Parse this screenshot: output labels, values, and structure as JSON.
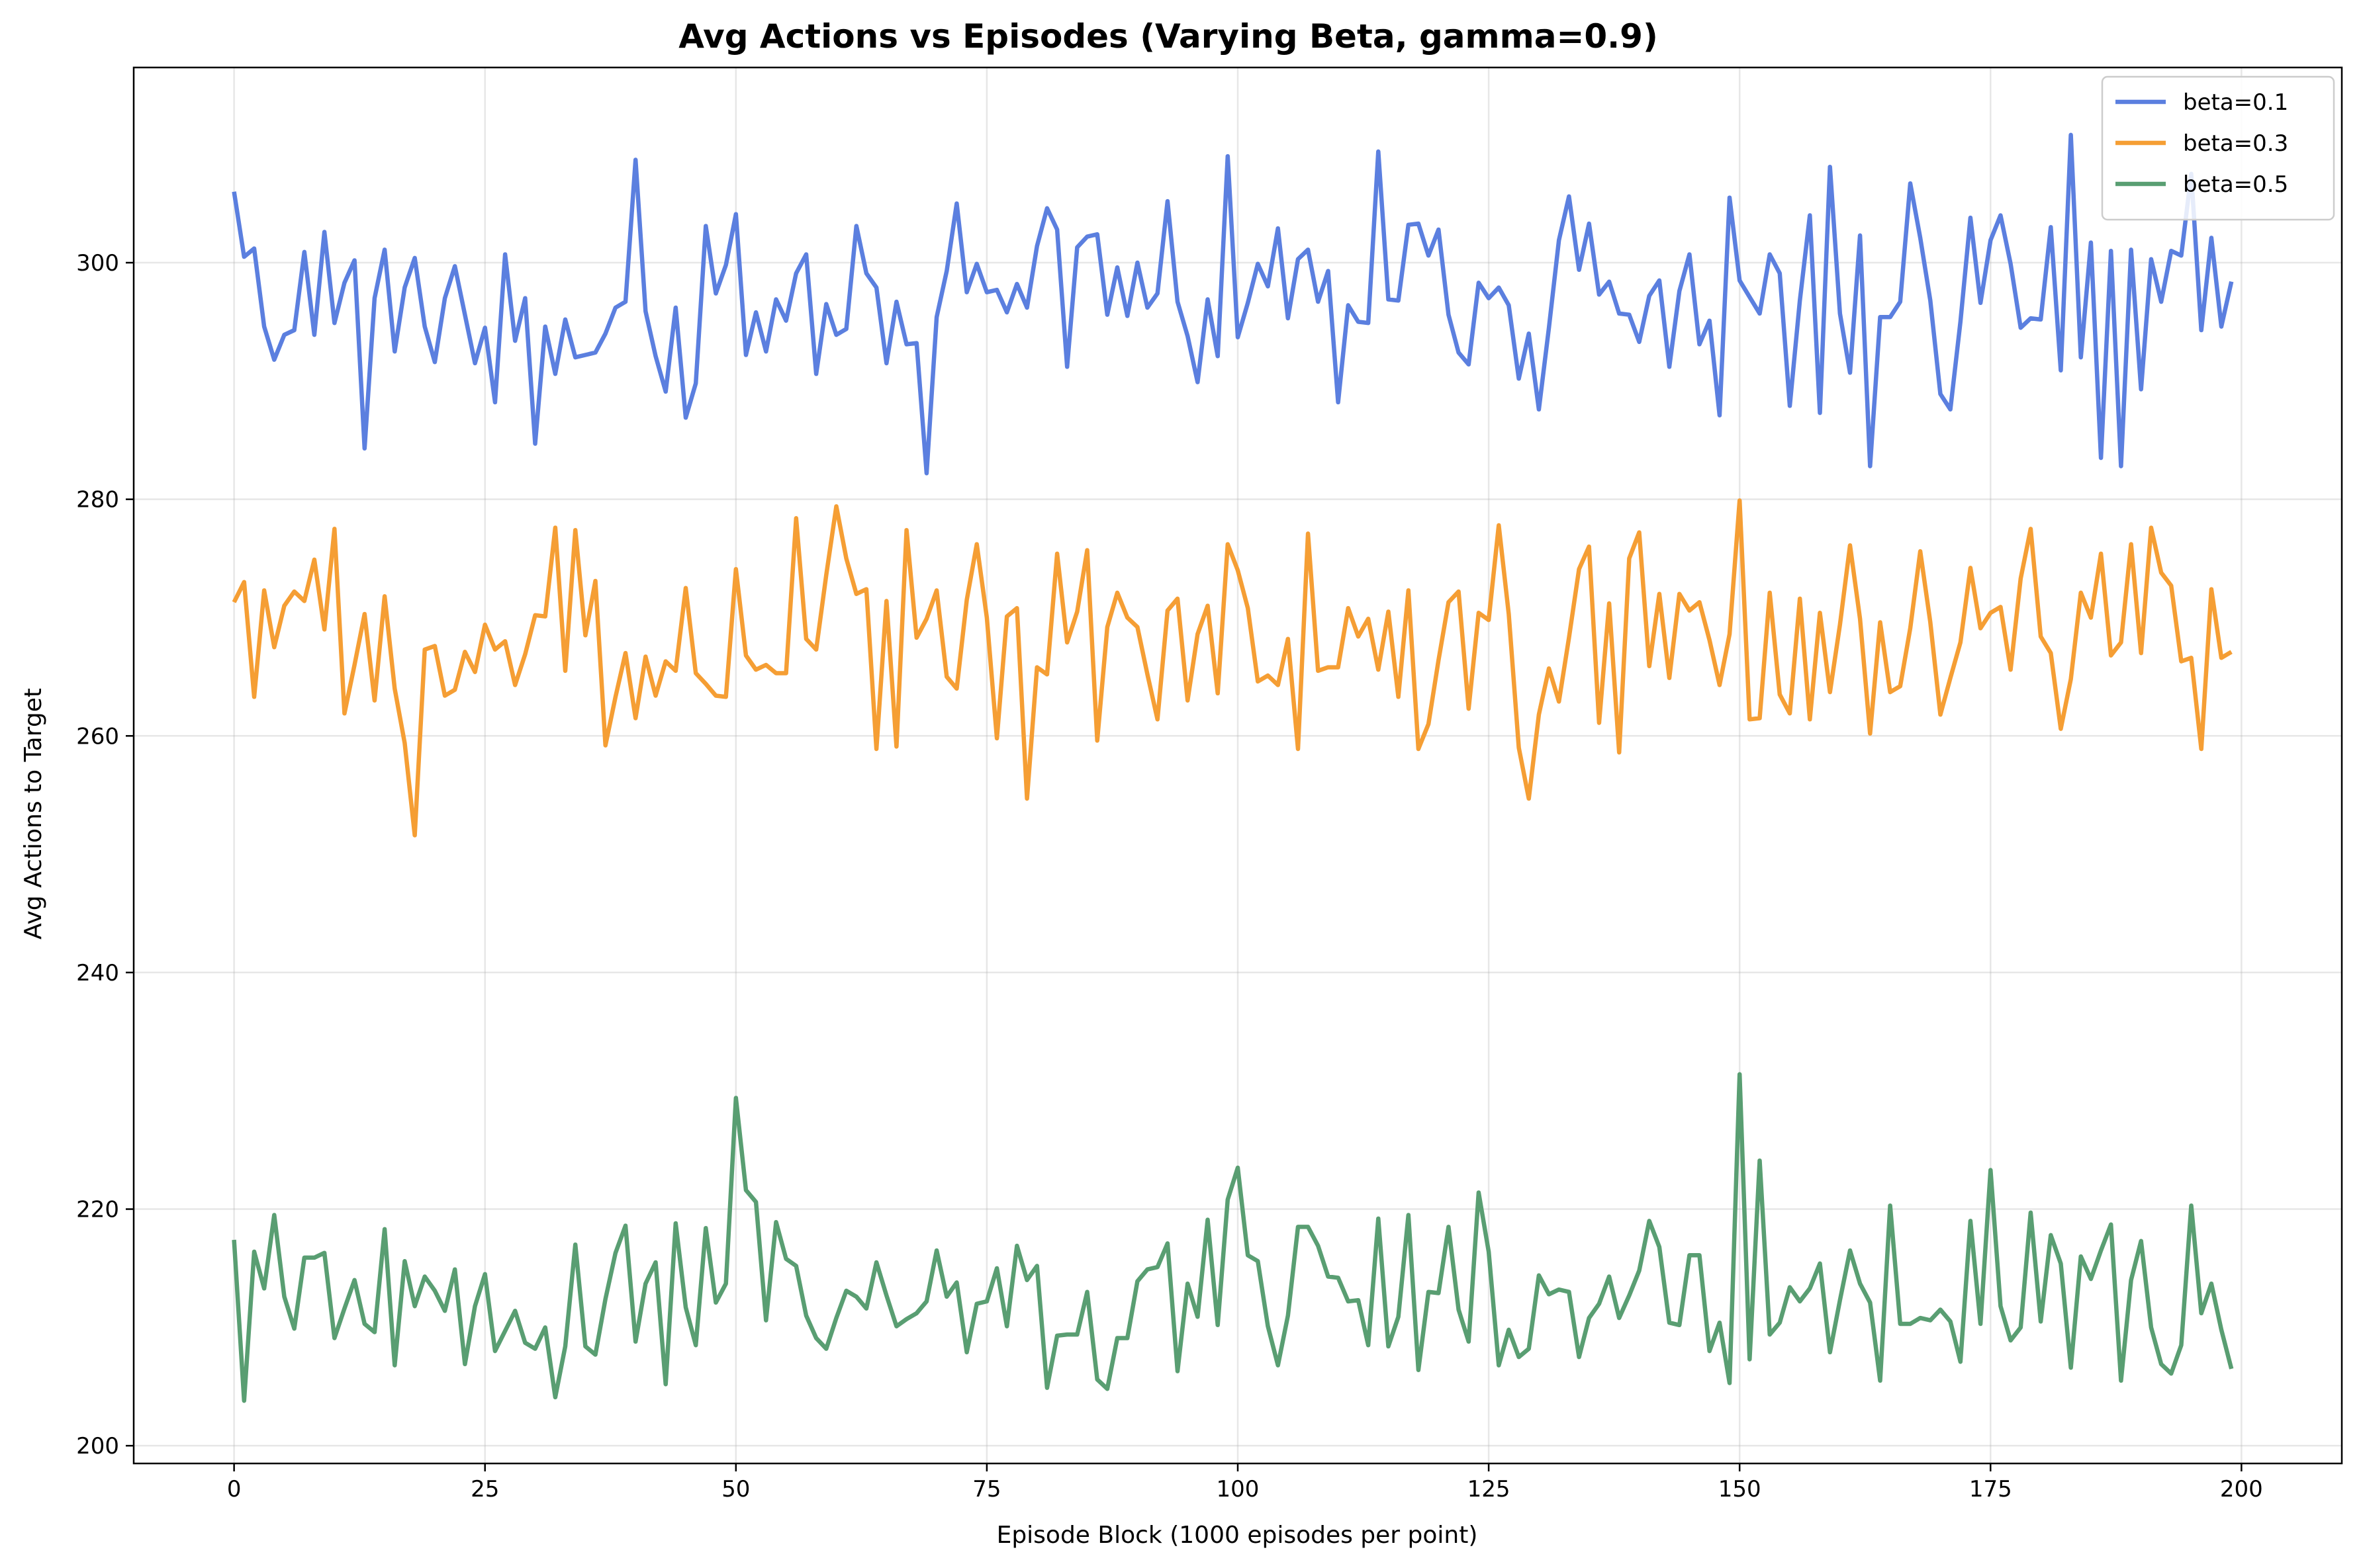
{
  "chart_data": {
    "type": "line",
    "title": "Avg Actions vs Episodes (Varying Beta, gamma=0.9)",
    "xlabel": "Episode Block (1000 episodes per point)",
    "ylabel": "Avg Actions to Target",
    "xlim": [
      -10,
      210
    ],
    "ylim": [
      198.5,
      316.5
    ],
    "xticks": [
      0,
      25,
      50,
      75,
      100,
      125,
      150,
      175,
      200
    ],
    "yticks": [
      200,
      220,
      240,
      260,
      280,
      300
    ],
    "grid": true,
    "legend_position": "top-right",
    "x": {
      "start": 0,
      "end": 199,
      "step": 1
    },
    "series": [
      {
        "name": "beta=0.1",
        "color": "#5b7fdf",
        "values": [
          306.0,
          300.5,
          301.2,
          294.6,
          291.8,
          293.9,
          294.3,
          300.9,
          293.9,
          302.6,
          294.9,
          298.3,
          300.2,
          284.3,
          297.0,
          301.1,
          292.5,
          297.9,
          300.4,
          294.6,
          291.6,
          297.0,
          299.7,
          295.6,
          291.5,
          294.5,
          288.2,
          300.7,
          293.4,
          297.0,
          284.7,
          294.6,
          290.6,
          295.2,
          292.0,
          292.2,
          292.4,
          294.0,
          296.2,
          296.7,
          308.7,
          295.9,
          292.1,
          289.1,
          296.2,
          286.9,
          289.8,
          303.1,
          297.4,
          299.8,
          304.1,
          292.2,
          295.8,
          292.5,
          296.9,
          295.1,
          299.1,
          300.7,
          290.6,
          296.5,
          293.9,
          294.4,
          303.1,
          299.1,
          297.9,
          291.5,
          296.7,
          293.1,
          293.2,
          282.2,
          295.4,
          299.3,
          305.0,
          297.5,
          299.9,
          297.5,
          297.7,
          295.8,
          298.2,
          296.2,
          301.4,
          304.6,
          302.8,
          291.2,
          301.3,
          302.2,
          302.4,
          295.6,
          299.6,
          295.5,
          300.0,
          296.2,
          297.4,
          305.2,
          296.7,
          293.8,
          289.9,
          296.9,
          292.1,
          309.0,
          293.7,
          296.6,
          299.9,
          298.0,
          302.9,
          295.3,
          300.3,
          301.1,
          296.7,
          299.3,
          288.2,
          296.4,
          295.0,
          294.9,
          309.4,
          296.9,
          296.8,
          303.2,
          303.3,
          300.6,
          302.8,
          295.6,
          292.4,
          291.4,
          298.3,
          297.0,
          297.9,
          296.4,
          290.2,
          294.0,
          287.6,
          294.5,
          301.9,
          305.6,
          299.4,
          303.3,
          297.3,
          298.4,
          295.7,
          295.6,
          293.3,
          297.2,
          298.5,
          291.2,
          297.6,
          300.7,
          293.1,
          295.1,
          287.1,
          305.5,
          298.5,
          297.1,
          295.7,
          300.7,
          299.1,
          287.9,
          296.8,
          304.0,
          287.3,
          308.1,
          295.7,
          290.7,
          302.3,
          282.8,
          295.4,
          295.4,
          296.7,
          306.7,
          302.1,
          296.8,
          288.9,
          287.6,
          295.0,
          303.8,
          296.6,
          301.9,
          304.0,
          299.9,
          294.5,
          295.3,
          295.2,
          303.0,
          290.9,
          310.8,
          292.0,
          301.7,
          283.5,
          301.0,
          282.8,
          301.1,
          289.3,
          300.3,
          296.7,
          301.0,
          300.6,
          307.5,
          294.3,
          302.1,
          294.6,
          298.4
        ]
      },
      {
        "name": "beta=0.3",
        "color": "#f59e34",
        "values": [
          271.3,
          273.0,
          263.3,
          272.3,
          267.5,
          271.0,
          272.2,
          271.4,
          274.9,
          269.0,
          277.5,
          261.9,
          266.0,
          270.3,
          263.0,
          271.8,
          264.0,
          259.4,
          251.6,
          267.3,
          267.6,
          263.4,
          263.9,
          267.1,
          265.4,
          269.4,
          267.3,
          268.0,
          264.3,
          266.9,
          270.2,
          270.1,
          277.6,
          265.5,
          277.4,
          268.5,
          273.1,
          259.2,
          263.3,
          267.0,
          261.5,
          266.7,
          263.4,
          266.3,
          265.5,
          272.5,
          265.3,
          264.4,
          263.4,
          263.3,
          274.1,
          266.8,
          265.6,
          266.0,
          265.3,
          265.3,
          278.4,
          268.2,
          267.3,
          273.6,
          279.4,
          275.0,
          272.0,
          272.4,
          258.9,
          271.4,
          259.1,
          277.4,
          268.3,
          269.9,
          272.3,
          265.0,
          264.0,
          271.5,
          276.2,
          270.0,
          259.8,
          270.1,
          270.8,
          254.7,
          265.8,
          265.2,
          275.4,
          267.9,
          270.5,
          275.7,
          259.6,
          269.2,
          272.1,
          270.0,
          269.2,
          265.2,
          261.4,
          270.6,
          271.6,
          263.0,
          268.6,
          271.0,
          263.6,
          276.2,
          274.0,
          270.8,
          264.6,
          265.1,
          264.3,
          268.2,
          258.9,
          277.1,
          265.5,
          265.8,
          265.8,
          270.8,
          268.4,
          269.9,
          265.6,
          270.5,
          263.3,
          272.3,
          258.9,
          261.0,
          266.4,
          271.3,
          272.2,
          262.3,
          270.4,
          269.8,
          277.8,
          270.3,
          259.0,
          254.7,
          261.8,
          265.7,
          262.9,
          268.3,
          274.1,
          276.0,
          261.1,
          271.2,
          258.6,
          275.0,
          277.2,
          265.9,
          272.0,
          264.9,
          272.0,
          270.6,
          271.3,
          268.1,
          264.3,
          268.6,
          279.9,
          261.4,
          261.5,
          272.1,
          263.5,
          261.9,
          271.6,
          261.4,
          270.4,
          263.7,
          269.4,
          276.1,
          269.9,
          260.2,
          269.6,
          263.7,
          264.2,
          269.1,
          275.6,
          269.6,
          261.8,
          264.9,
          267.9,
          274.2,
          269.1,
          270.4,
          270.9,
          265.6,
          273.3,
          277.5,
          268.4,
          267.0,
          260.6,
          264.8,
          272.1,
          270.0,
          275.4,
          266.8,
          267.9,
          276.2,
          267.0,
          277.6,
          273.8,
          272.7,
          266.3,
          266.6,
          258.9,
          272.4,
          266.6,
          267.1
        ]
      },
      {
        "name": "beta=0.5",
        "color": "#599e72",
        "values": [
          217.4,
          203.8,
          216.4,
          213.3,
          219.5,
          212.6,
          209.9,
          215.9,
          215.9,
          216.3,
          209.1,
          211.6,
          214.0,
          210.3,
          209.6,
          218.3,
          206.8,
          215.6,
          211.8,
          214.3,
          213.1,
          211.4,
          214.9,
          206.9,
          211.8,
          214.5,
          208.0,
          209.7,
          211.4,
          208.7,
          208.2,
          210.0,
          204.1,
          208.4,
          217.0,
          208.4,
          207.7,
          212.4,
          216.3,
          218.6,
          208.8,
          213.7,
          215.5,
          205.2,
          218.8,
          211.7,
          208.5,
          218.4,
          212.1,
          213.7,
          229.4,
          221.6,
          220.6,
          210.6,
          218.9,
          215.8,
          215.2,
          211.0,
          209.1,
          208.2,
          210.8,
          213.1,
          212.6,
          211.6,
          215.5,
          212.7,
          210.1,
          210.7,
          211.2,
          212.2,
          216.5,
          212.6,
          213.8,
          207.9,
          212.0,
          212.2,
          215.0,
          210.1,
          216.9,
          214.0,
          215.2,
          204.9,
          209.3,
          209.4,
          209.4,
          213.0,
          205.6,
          204.8,
          209.1,
          209.1,
          213.9,
          214.9,
          215.1,
          217.1,
          206.3,
          213.7,
          210.9,
          219.1,
          210.2,
          220.8,
          223.5,
          216.1,
          215.6,
          210.1,
          206.8,
          211.0,
          218.5,
          218.5,
          216.9,
          214.3,
          214.2,
          212.2,
          212.3,
          208.5,
          219.2,
          208.4,
          210.9,
          219.5,
          206.4,
          213.0,
          212.9,
          218.5,
          211.5,
          208.8,
          221.4,
          216.4,
          206.8,
          209.8,
          207.5,
          208.2,
          214.4,
          212.8,
          213.2,
          213.0,
          207.5,
          210.8,
          212.0,
          214.3,
          210.8,
          212.7,
          214.8,
          219.0,
          216.8,
          210.4,
          210.2,
          216.1,
          216.1,
          208.0,
          210.4,
          205.3,
          231.4,
          207.3,
          224.1,
          209.4,
          210.4,
          213.4,
          212.2,
          213.3,
          215.4,
          207.9,
          212.3,
          216.5,
          213.7,
          212.1,
          205.5,
          220.3,
          210.3,
          210.3,
          210.8,
          210.6,
          211.5,
          210.5,
          207.1,
          219.0,
          210.3,
          223.3,
          211.8,
          208.9,
          210.0,
          219.7,
          210.5,
          217.8,
          215.4,
          206.6,
          216.0,
          214.1,
          216.5,
          218.7,
          205.5,
          214.0,
          217.3,
          210.0,
          206.9,
          206.1,
          208.5,
          220.3,
          211.2,
          213.7,
          209.8,
          206.5
        ]
      }
    ]
  }
}
